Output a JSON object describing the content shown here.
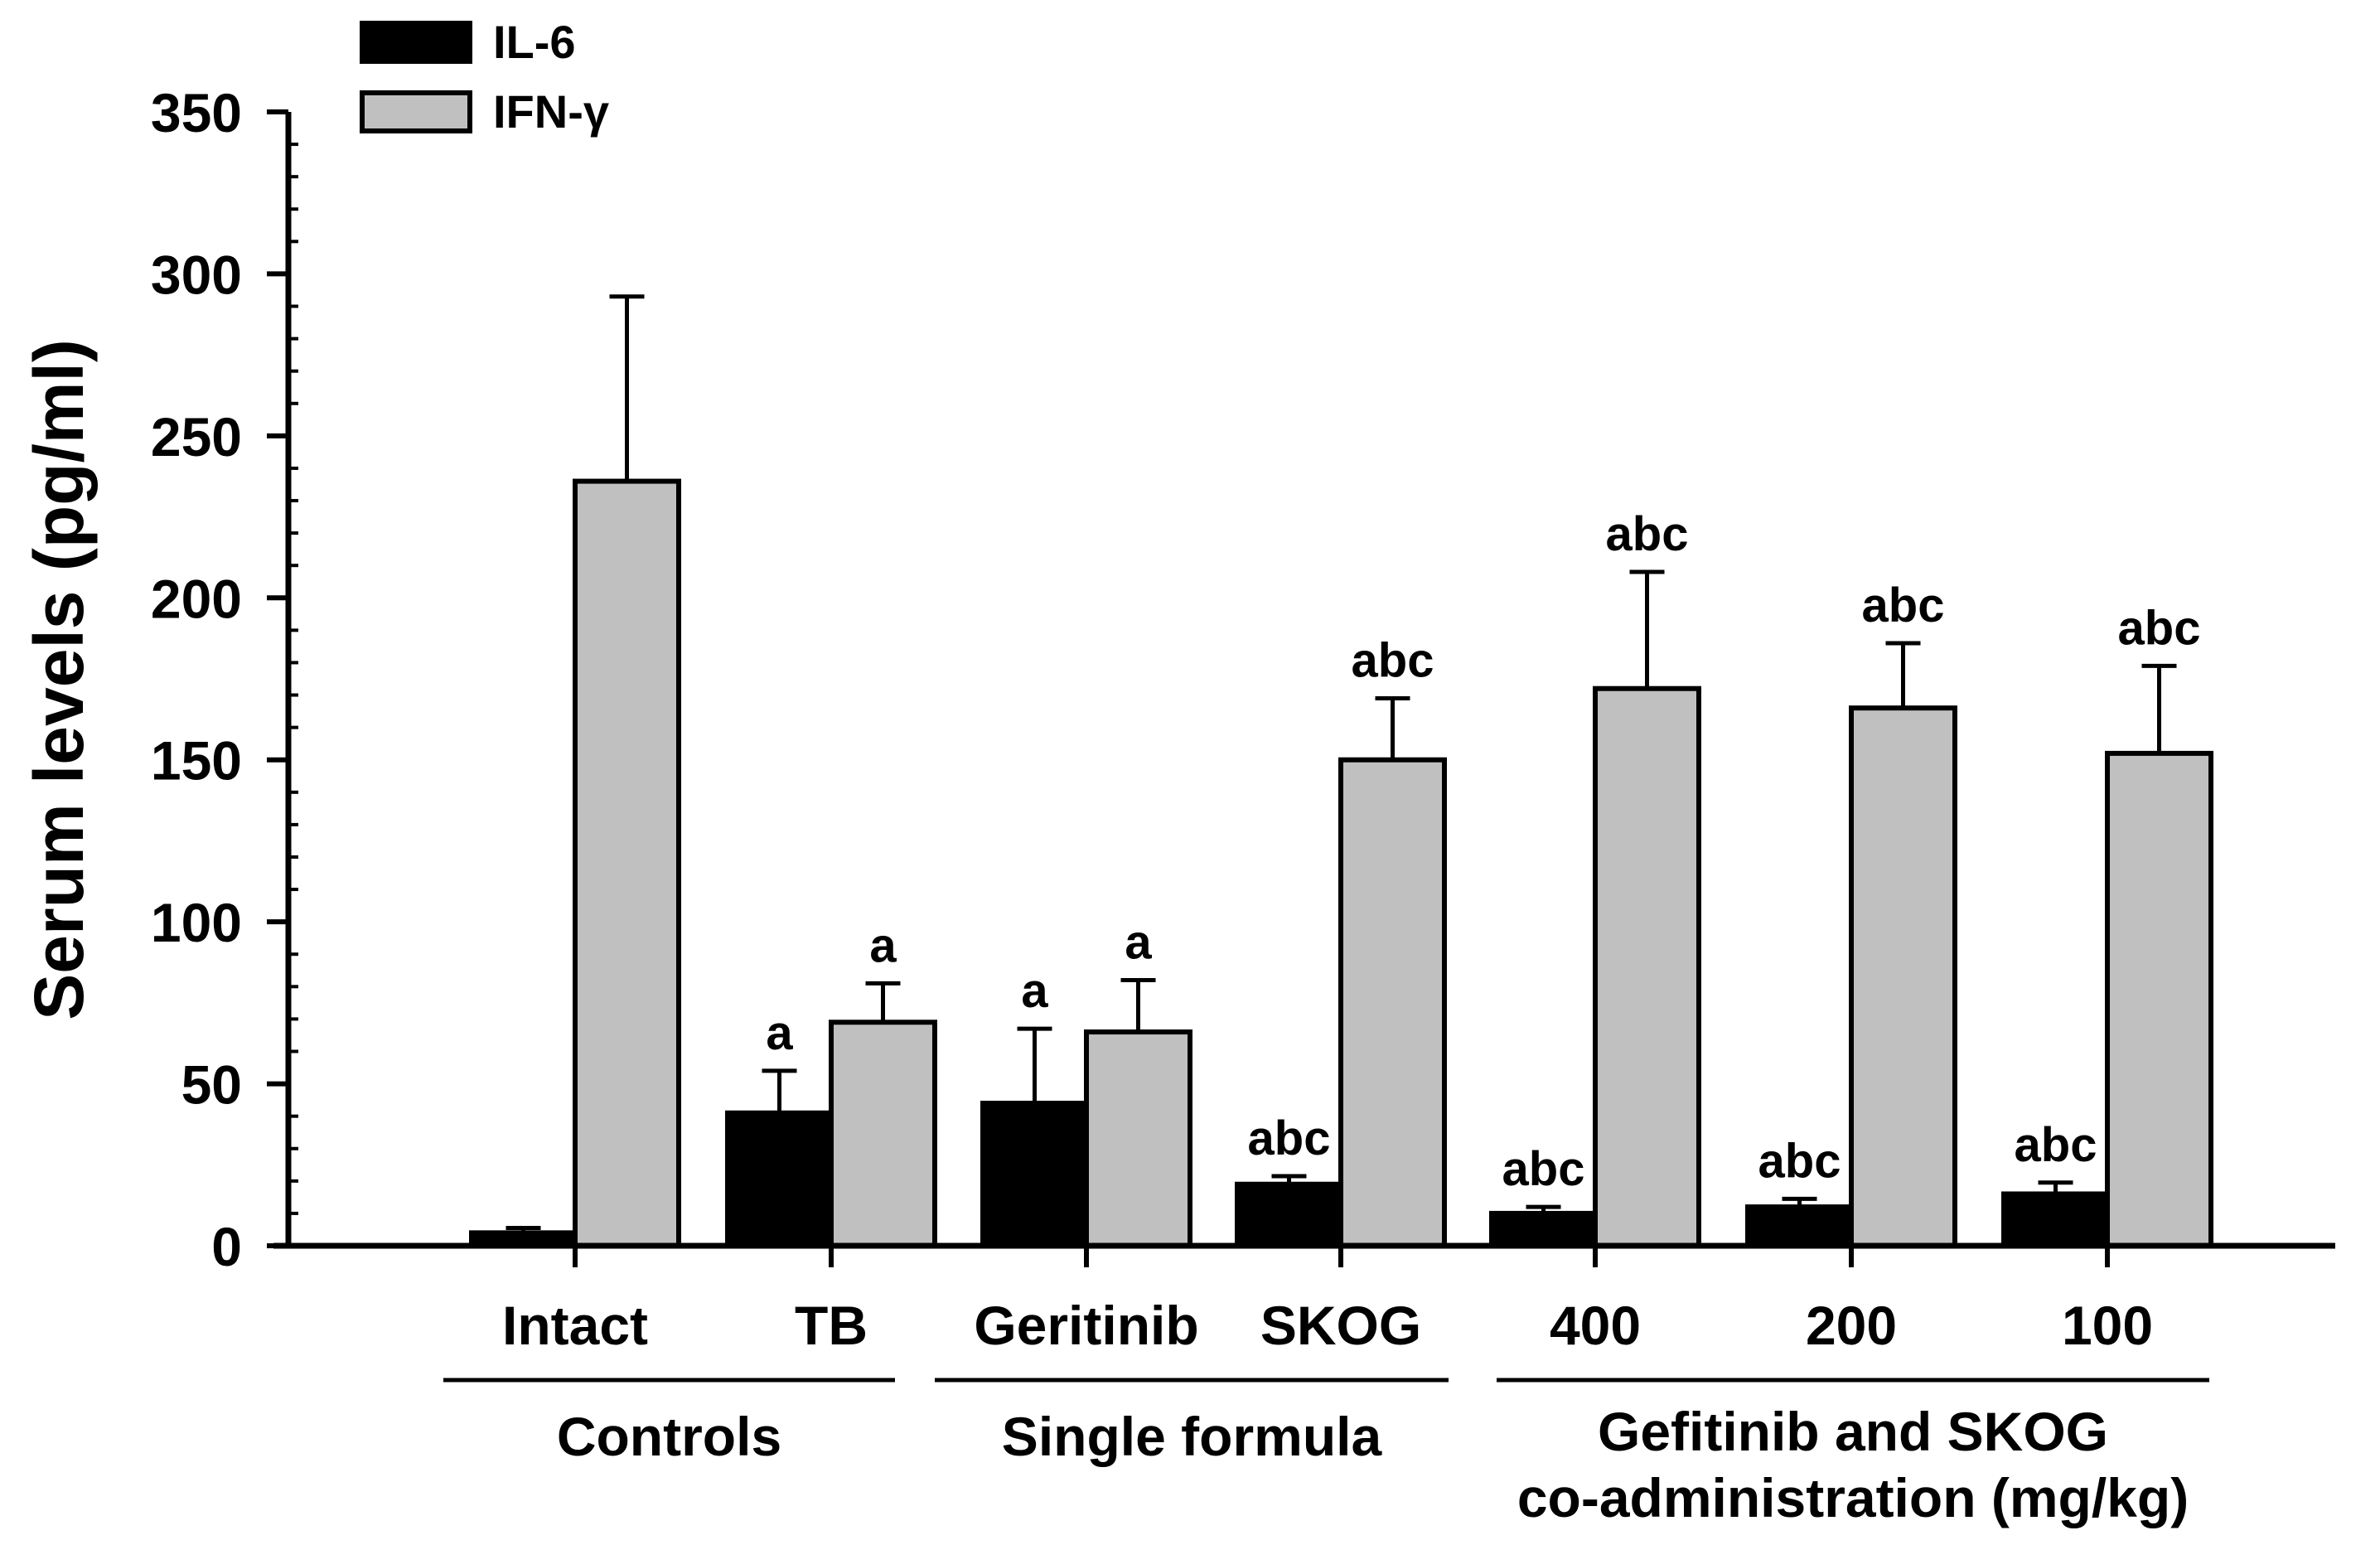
{
  "chart_data": {
    "type": "bar",
    "title": "",
    "xlabel": "",
    "ylabel": "Serum levels (pg/ml)",
    "ylim": [
      0,
      350
    ],
    "yticks": [
      "0",
      "50",
      "100",
      "150",
      "200",
      "250",
      "300",
      "350"
    ],
    "categories": [
      "Intact",
      "TB",
      "Geritinib",
      "SKOG",
      "400",
      "200",
      "100"
    ],
    "groups": [
      {
        "label": "Controls",
        "members": [
          "Intact",
          "TB"
        ]
      },
      {
        "label": "Single formula",
        "members": [
          "Geritinib",
          "SKOG"
        ]
      },
      {
        "label_lines": [
          "Gefitinib and SKOG",
          "co-administration (mg/kg)"
        ],
        "members": [
          "400",
          "200",
          "100"
        ]
      }
    ],
    "series": [
      {
        "name": "IL-6",
        "color": "#000000",
        "values": [
          4,
          41,
          44,
          19,
          10,
          12,
          16
        ],
        "errors": [
          1.5,
          13,
          23,
          2.5,
          2,
          2.5,
          3.5
        ],
        "annotations": [
          "",
          "a",
          "a",
          "abc",
          "abc",
          "abc",
          "abc"
        ]
      },
      {
        "name": "IFN-γ",
        "color": "#c0c0c0",
        "values": [
          236,
          69,
          66,
          150,
          172,
          166,
          152
        ],
        "errors": [
          57,
          12,
          16,
          19,
          36,
          20,
          27
        ],
        "annotations": [
          "",
          "a",
          "a",
          "abc",
          "abc",
          "abc",
          "abc"
        ]
      }
    ],
    "legend": "top-left"
  }
}
